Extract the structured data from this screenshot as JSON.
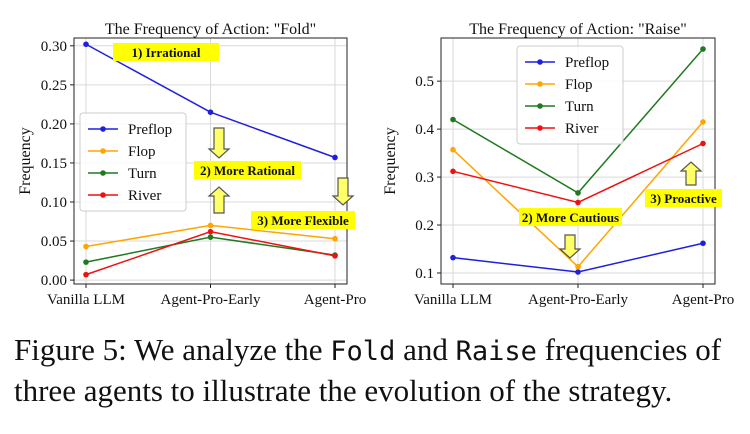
{
  "chart_data": [
    {
      "type": "line",
      "title": "The Frequency of Action: \"Fold\"",
      "xlabel": "",
      "ylabel": "Frequency",
      "categories": [
        "Vanilla LLM",
        "Agent-Pro-Early",
        "Agent-Pro"
      ],
      "ylim": [
        -0.005,
        0.31
      ],
      "yticks": [
        0.0,
        0.05,
        0.1,
        0.15,
        0.2,
        0.25,
        0.3
      ],
      "ytick_labels": [
        "0.00",
        "0.05",
        "0.10",
        "0.15",
        "0.20",
        "0.25",
        "0.30"
      ],
      "grid": true,
      "legend_position": "center-left",
      "series": [
        {
          "name": "Preflop",
          "color": "#1f1fe0",
          "values": [
            0.302,
            0.215,
            0.157
          ]
        },
        {
          "name": "Flop",
          "color": "#ffa500",
          "values": [
            0.043,
            0.07,
            0.053
          ]
        },
        {
          "name": "Turn",
          "color": "#1f7a1f",
          "values": [
            0.023,
            0.055,
            0.032
          ]
        },
        {
          "name": "River",
          "color": "#ee1111",
          "values": [
            0.007,
            0.062,
            0.031
          ]
        }
      ],
      "annotations": [
        {
          "text": "1) Irrational",
          "arrow": "none"
        },
        {
          "text": "2) More Rational",
          "arrow": "up-down"
        },
        {
          "text": "3) More Flexible",
          "arrow": "down"
        }
      ]
    },
    {
      "type": "line",
      "title": "The Frequency of Action: \"Raise\"",
      "xlabel": "",
      "ylabel": "Frequency",
      "categories": [
        "Vanilla LLM",
        "Agent-Pro-Early",
        "Agent-Pro"
      ],
      "ylim": [
        0.077,
        0.59
      ],
      "yticks": [
        0.1,
        0.2,
        0.3,
        0.4,
        0.5
      ],
      "ytick_labels": [
        "0.1",
        "0.2",
        "0.3",
        "0.4",
        "0.5"
      ],
      "grid": true,
      "legend_position": "top-center",
      "series": [
        {
          "name": "Preflop",
          "color": "#1f1fe0",
          "values": [
            0.132,
            0.102,
            0.162
          ]
        },
        {
          "name": "Flop",
          "color": "#ffa500",
          "values": [
            0.357,
            0.113,
            0.415
          ]
        },
        {
          "name": "Turn",
          "color": "#1f7a1f",
          "values": [
            0.42,
            0.267,
            0.567
          ]
        },
        {
          "name": "River",
          "color": "#ee1111",
          "values": [
            0.312,
            0.247,
            0.37
          ]
        }
      ],
      "annotations": [
        {
          "text": "2) More Cautious",
          "arrow": "down"
        },
        {
          "text": "3) Proactive",
          "arrow": "up"
        }
      ]
    }
  ],
  "caption": {
    "part1": "Figure 5: We analyze the ",
    "code1": "Fold",
    "part2": " and ",
    "code2": "Raise",
    "part3": " frequencies of three agents to illustrate the evolution of the strategy."
  }
}
